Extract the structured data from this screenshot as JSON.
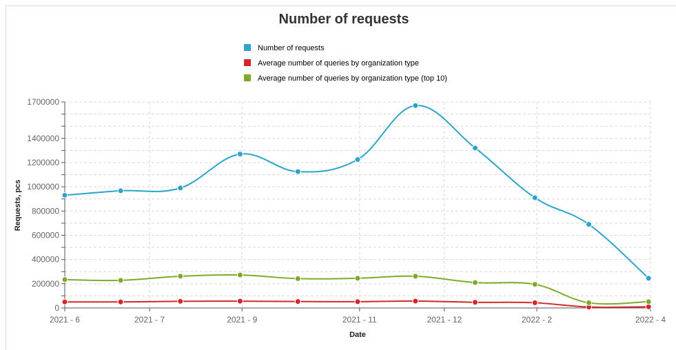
{
  "chart_data": {
    "type": "line",
    "title": "Number of requests",
    "xlabel": "Date",
    "ylabel": "Requests, pcs",
    "ylim": [
      0,
      1700000
    ],
    "grid": true,
    "legend_position": "top-center",
    "x_tick_labels": [
      "2021 - 6",
      "2021 - 7",
      "2021 - 9",
      "2021 - 11",
      "2021 - 12",
      "2022 - 2",
      "2022 - 4"
    ],
    "x_tick_dates": [
      "2021-06-01",
      "2021-07-15",
      "2021-09-01",
      "2021-11-01",
      "2021-12-15",
      "2022-02-01",
      "2022-04-01"
    ],
    "y_tick_values": [
      0,
      200000,
      400000,
      600000,
      800000,
      1000000,
      1200000,
      1400000,
      1700000
    ],
    "x": [
      "2021-06-01",
      "2021-06-30",
      "2021-07-31",
      "2021-08-31",
      "2021-09-30",
      "2021-10-31",
      "2021-11-30",
      "2021-12-31",
      "2022-01-31",
      "2022-02-28",
      "2022-03-31"
    ],
    "series": [
      {
        "name": "Number of requests",
        "color": "#2ea3c9",
        "values": [
          930000,
          967000,
          990000,
          1270000,
          1125000,
          1225000,
          1670000,
          1320000,
          910000,
          690000,
          245000
        ]
      },
      {
        "name": "Average number of queries by organization type",
        "color": "#d42727",
        "values": [
          50000,
          50000,
          55000,
          56000,
          53000,
          52000,
          57000,
          47000,
          43000,
          8000,
          10000
        ]
      },
      {
        "name": "Average number of queries by organization type (top 10)",
        "color": "#7aab2a",
        "values": [
          234000,
          228000,
          262000,
          272000,
          242000,
          245000,
          262000,
          210000,
          195000,
          43000,
          52000
        ]
      }
    ]
  }
}
